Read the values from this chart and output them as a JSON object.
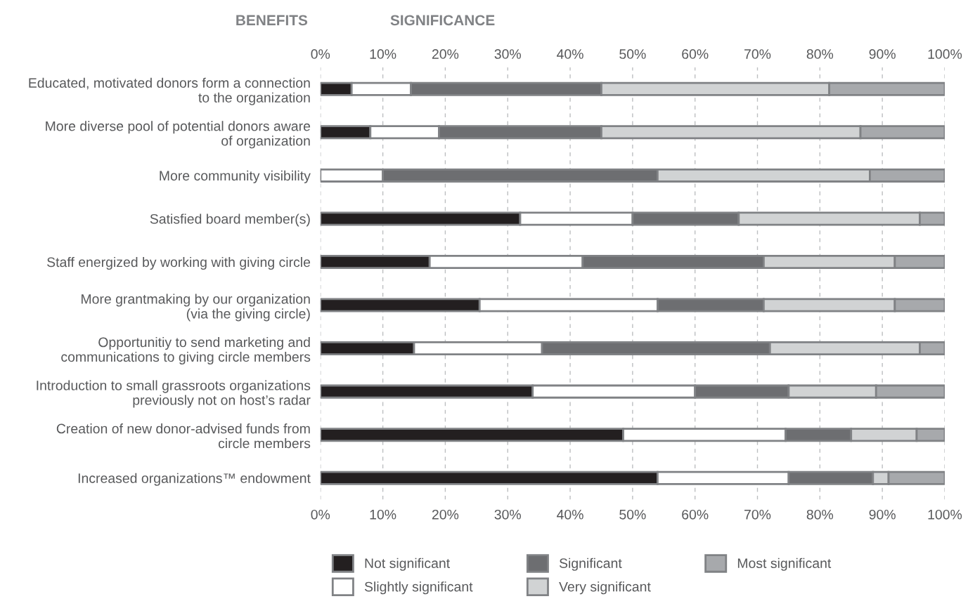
{
  "chart_data": {
    "type": "bar",
    "orientation": "horizontal",
    "stacked": true,
    "annotations": [
      "BENEFITS",
      "SIGNIFICANCE"
    ],
    "categories": [
      "Educated, motivated donors form a connection\nto the organization",
      "More diverse pool of potential donors aware\nof organization",
      "More community visibility",
      "Satisfied board member(s)",
      "Staff energized by working with giving circle",
      "More grantmaking by our organization\n(via the giving circle)",
      "Opportunitiy to send marketing and\ncommunications to giving circle members",
      "Introduction to small grassroots organizations\npreviously not on host’s radar",
      "Creation of new donor-advised funds from\ncircle members",
      "Increased organizations™ endowment"
    ],
    "series": [
      {
        "name": "Not significant",
        "color": "#231f20",
        "values": [
          5,
          8,
          0,
          32,
          17.5,
          25.5,
          15,
          34,
          48.5,
          54
        ]
      },
      {
        "name": "Slightly significant",
        "color": "#ffffff",
        "values": [
          9.5,
          11,
          10,
          18,
          24.5,
          28.5,
          20.5,
          26,
          26,
          21
        ]
      },
      {
        "name": "Significant",
        "color": "#6d6e71",
        "values": [
          30.5,
          26,
          44,
          17,
          29,
          17,
          36.5,
          15,
          10.5,
          13.5
        ]
      },
      {
        "name": "Very significant",
        "color": "#d1d3d4",
        "values": [
          36.5,
          41.5,
          34,
          29,
          21,
          21,
          24,
          14,
          10.5,
          2.5
        ]
      },
      {
        "name": "Most significant",
        "color": "#a7a9ac",
        "values": [
          18.5,
          13.5,
          12,
          4,
          8,
          8,
          4,
          11,
          4.5,
          9
        ]
      }
    ],
    "xlim": [
      0,
      100
    ],
    "xticks": [
      {
        "value": 0,
        "label": "0%"
      },
      {
        "value": 10,
        "label": "10%"
      },
      {
        "value": 20,
        "label": "20%"
      },
      {
        "value": 30,
        "label": "30%"
      },
      {
        "value": 40,
        "label": "40%"
      },
      {
        "value": 50,
        "label": "50%"
      },
      {
        "value": 60,
        "label": "60%"
      },
      {
        "value": 70,
        "label": "70%"
      },
      {
        "value": 80,
        "label": "80%"
      },
      {
        "value": 90,
        "label": "90%"
      },
      {
        "value": 100,
        "label": "100%"
      }
    ],
    "x2lim": [
      0,
      100
    ],
    "x2ticks": [
      {
        "value": 0,
        "label": "0%"
      },
      {
        "value": 10,
        "label": "10%"
      },
      {
        "value": 20,
        "label": "20%"
      },
      {
        "value": 30,
        "label": "30%"
      },
      {
        "value": 40,
        "label": "40%"
      },
      {
        "value": 50,
        "label": "50%"
      },
      {
        "value": 60,
        "label": "60%"
      },
      {
        "value": 70,
        "label": "70%"
      },
      {
        "value": 80,
        "label": "80%"
      },
      {
        "value": 90,
        "label": "90%"
      },
      {
        "value": 100,
        "label": "100%"
      }
    ],
    "grid": "x",
    "legend": "bottom"
  }
}
